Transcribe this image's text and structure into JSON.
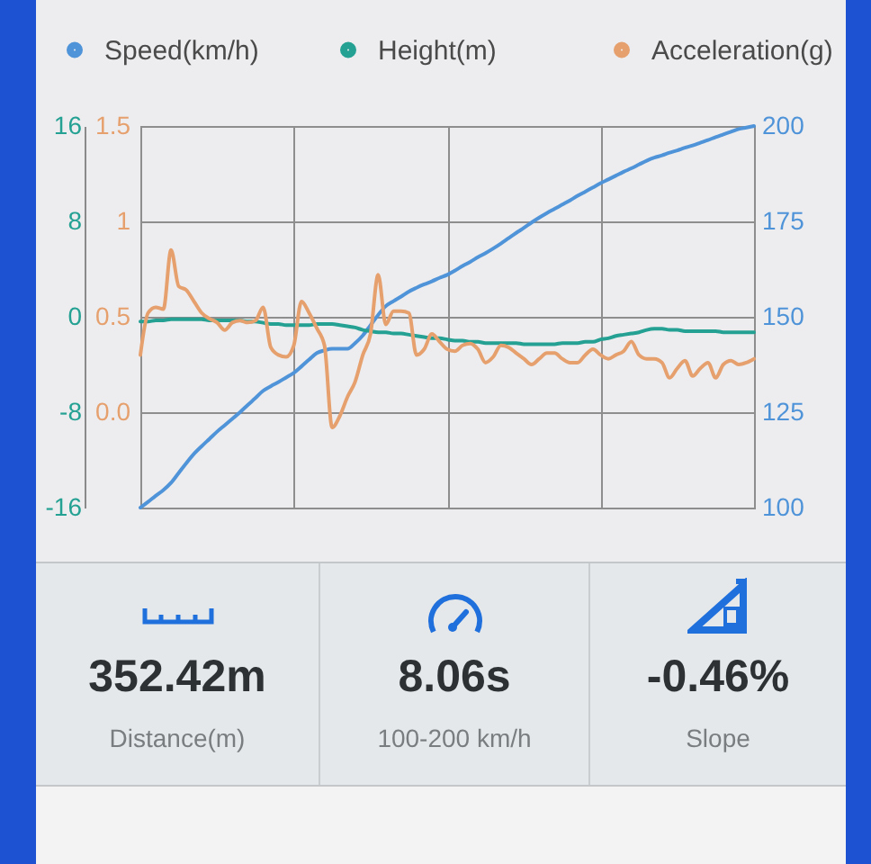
{
  "chart_data": [
    {
      "type": "line",
      "legend": "top",
      "grid": true,
      "tick_labels": "y",
      "categories": [
        null,
        null,
        null,
        null,
        null,
        null,
        null,
        null,
        null,
        null,
        null,
        null,
        null,
        null,
        null,
        null,
        null,
        null,
        null,
        null,
        null,
        null,
        null,
        null,
        null,
        null,
        null,
        null,
        null,
        null,
        null,
        null,
        null,
        null,
        null,
        null,
        null,
        null,
        null,
        null,
        null,
        null,
        null,
        null,
        null,
        null,
        null,
        null,
        null,
        null,
        null,
        null,
        null,
        null,
        null,
        null,
        null,
        null,
        null,
        null,
        null,
        null,
        null,
        null,
        null,
        null,
        null,
        null,
        null,
        null,
        null,
        null,
        null,
        null,
        null,
        null,
        null,
        null,
        null,
        null,
        null
      ],
      "ylim": [
        -16,
        16
      ],
      "yticks": [
        -16,
        -8,
        0,
        8,
        16
      ],
      "y2lim": [
        100,
        200
      ],
      "y2ticks": [
        100,
        125,
        150,
        175,
        200
      ],
      "y3lim": [
        -0.5,
        1.5
      ],
      "y3ticks": [
        {
          "value": 0,
          "label": "0.0"
        },
        0.5,
        1,
        1.5
      ],
      "series": [
        {
          "name": "Speed(km/h)",
          "color": "#4f93d8",
          "axis": "y2",
          "values": [
            100,
            101.5,
            103.1,
            104.6,
            106.5,
            109.1,
            111.7,
            114.1,
            116.1,
            118,
            119.9,
            121.6,
            123.3,
            125,
            126.9,
            128.7,
            130.6,
            131.8,
            132.9,
            134.1,
            135.3,
            137,
            138.8,
            140.5,
            141.2,
            141.6,
            141.6,
            141.6,
            143.1,
            145.1,
            147.8,
            150.5,
            152.8,
            154.1,
            155.3,
            156.6,
            157.6,
            158.5,
            159.3,
            160.2,
            161,
            162.1,
            163.3,
            164.4,
            165.6,
            166.7,
            167.9,
            169.2,
            170.6,
            172,
            173.3,
            174.7,
            176,
            177.2,
            178.3,
            179.4,
            180.5,
            181.7,
            182.8,
            183.9,
            185,
            186,
            187,
            188,
            188.9,
            189.9,
            190.9,
            191.7,
            192.3,
            193,
            193.6,
            194.3,
            194.9,
            195.6,
            196.3,
            197.1,
            197.8,
            198.5,
            199.2,
            199.6,
            200
          ]
        },
        {
          "name": "Height(m)",
          "color": "#24a193",
          "values": [
            -0.4,
            -0.4,
            -0.3,
            -0.3,
            -0.2,
            -0.2,
            -0.2,
            -0.2,
            -0.2,
            -0.3,
            -0.3,
            -0.3,
            -0.3,
            -0.3,
            -0.4,
            -0.4,
            -0.5,
            -0.6,
            -0.6,
            -0.7,
            -0.7,
            -0.7,
            -0.7,
            -0.6,
            -0.6,
            -0.6,
            -0.7,
            -0.8,
            -0.9,
            -1.1,
            -1.2,
            -1.3,
            -1.3,
            -1.4,
            -1.4,
            -1.5,
            -1.6,
            -1.7,
            -1.8,
            -1.8,
            -1.9,
            -2.0,
            -2.0,
            -2.1,
            -2.1,
            -2.2,
            -2.2,
            -2.2,
            -2.2,
            -2.2,
            -2.3,
            -2.3,
            -2.3,
            -2.3,
            -2.3,
            -2.2,
            -2.2,
            -2.2,
            -2.1,
            -2.1,
            -1.9,
            -1.8,
            -1.6,
            -1.5,
            -1.4,
            -1.3,
            -1.1,
            -1.0,
            -1.0,
            -1.1,
            -1.1,
            -1.2,
            -1.2,
            -1.2,
            -1.2,
            -1.2,
            -1.3,
            -1.3,
            -1.3,
            -1.3,
            -1.3
          ]
        },
        {
          "name": "Acceleration(g)",
          "color": "#e6a06e",
          "axis": "y3",
          "values": [
            0.3,
            0.52,
            0.55,
            0.54,
            0.85,
            0.66,
            0.64,
            0.58,
            0.52,
            0.49,
            0.47,
            0.43,
            0.47,
            0.48,
            0.47,
            0.48,
            0.55,
            0.34,
            0.3,
            0.29,
            0.35,
            0.58,
            0.52,
            0.44,
            0.35,
            -0.08,
            -0.02,
            0.08,
            0.16,
            0.3,
            0.41,
            0.72,
            0.46,
            0.53,
            0.53,
            0.52,
            0.3,
            0.33,
            0.41,
            0.37,
            0.33,
            0.32,
            0.35,
            0.36,
            0.33,
            0.26,
            0.29,
            0.35,
            0.34,
            0.31,
            0.28,
            0.25,
            0.28,
            0.31,
            0.31,
            0.28,
            0.26,
            0.26,
            0.3,
            0.33,
            0.3,
            0.28,
            0.3,
            0.32,
            0.37,
            0.3,
            0.28,
            0.28,
            0.26,
            0.18,
            0.23,
            0.27,
            0.19,
            0.23,
            0.26,
            0.18,
            0.25,
            0.27,
            0.25,
            0.26,
            0.28
          ]
        }
      ]
    },
    {
      "type": "other",
      "annotations": [
        "352.42m",
        "Distance(m)",
        "8.06s",
        "100-200 km/h",
        "-0.46%",
        "Slope"
      ]
    }
  ]
}
